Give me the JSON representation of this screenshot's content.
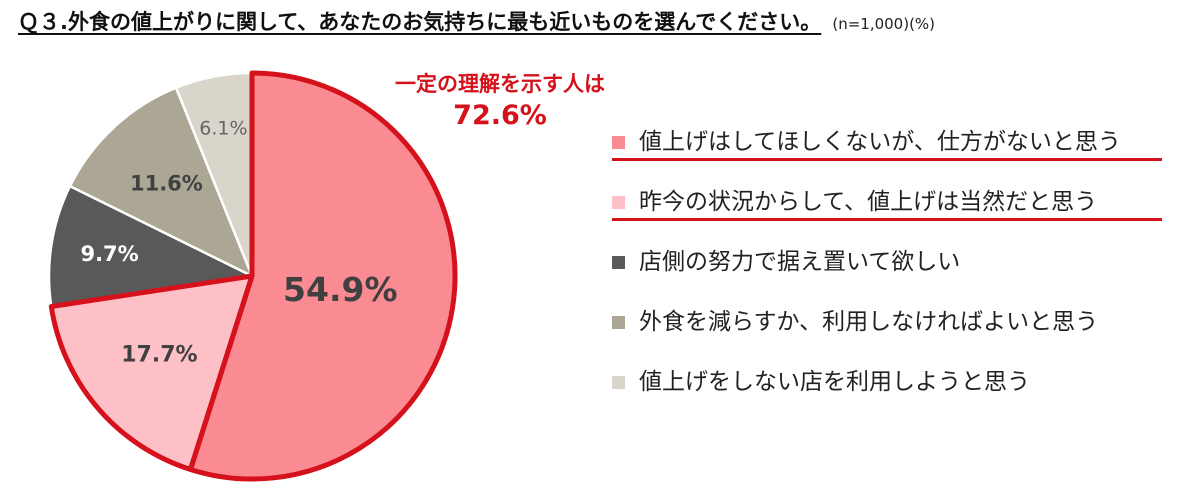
{
  "title": "Ｑ３.外食の値上がりに関して、あなたのお気持ちに最も近いものを選んでください。",
  "note": "(n=1,000)(%)",
  "callout": {
    "label": "一定の理解を示す人は",
    "value": "72.6%"
  },
  "colors": {
    "highlight": "#d5121c"
  },
  "chart_data": {
    "type": "pie",
    "title": "Ｑ３.外食の値上がりに関して、あなたのお気持ちに最も近いものを選んでください。",
    "slices": [
      {
        "label": "値上げはしてほしくないが、仕方がないと思う",
        "value": 54.9,
        "display": "54.9%",
        "color": "#fb8b92",
        "underlined": true
      },
      {
        "label": "昨今の状況からして、値上げは当然だと思う",
        "value": 17.7,
        "display": "17.7%",
        "color": "#fdc0c6",
        "underlined": true
      },
      {
        "label": "店側の努力で据え置いて欲しい",
        "value": 9.7,
        "display": "9.7%",
        "color": "#595959",
        "underlined": false
      },
      {
        "label": "外食を減らすか、利用しなければよいと思う",
        "value": 11.6,
        "display": "11.6%",
        "color": "#aca795",
        "underlined": false
      },
      {
        "label": "値上げをしない店を利用しようと思う",
        "value": 6.1,
        "display": "6.1%",
        "color": "#d9d5ca",
        "underlined": false
      }
    ],
    "highlight_total": "72.6%",
    "legend_position": "right"
  }
}
